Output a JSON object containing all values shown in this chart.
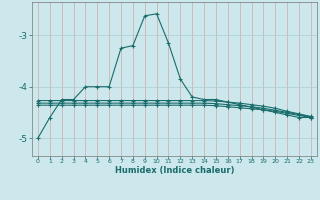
{
  "xlabel": "Humidex (Indice chaleur)",
  "background_color": "#cce8ec",
  "grid_color": "#aacccc",
  "line_color": "#1a6b6b",
  "xlim": [
    -0.5,
    23.5
  ],
  "ylim": [
    -5.35,
    -2.35
  ],
  "yticks": [
    -5,
    -4,
    -3
  ],
  "xticks": [
    0,
    1,
    2,
    3,
    4,
    5,
    6,
    7,
    8,
    9,
    10,
    11,
    12,
    13,
    14,
    15,
    16,
    17,
    18,
    19,
    20,
    21,
    22,
    23
  ],
  "main_y": [
    -5.0,
    -4.6,
    -4.25,
    -4.25,
    -4.0,
    -4.0,
    -4.0,
    -3.25,
    -3.2,
    -2.62,
    -2.58,
    -3.15,
    -3.85,
    -4.2,
    -4.25,
    -4.25,
    -4.3,
    -4.35,
    -4.4,
    -4.45,
    -4.5,
    -4.55,
    -4.6,
    -4.6
  ],
  "flat1": [
    -4.27,
    -4.27,
    -4.27,
    -4.27,
    -4.27,
    -4.27,
    -4.27,
    -4.27,
    -4.27,
    -4.27,
    -4.27,
    -4.27,
    -4.27,
    -4.27,
    -4.27,
    -4.28,
    -4.3,
    -4.32,
    -4.35,
    -4.38,
    -4.42,
    -4.48,
    -4.53,
    -4.58
  ],
  "flat2": [
    -4.32,
    -4.32,
    -4.32,
    -4.32,
    -4.32,
    -4.32,
    -4.32,
    -4.32,
    -4.32,
    -4.32,
    -4.32,
    -4.32,
    -4.32,
    -4.32,
    -4.32,
    -4.33,
    -4.35,
    -4.37,
    -4.39,
    -4.42,
    -4.46,
    -4.5,
    -4.54,
    -4.59
  ],
  "flat3": [
    -4.36,
    -4.36,
    -4.36,
    -4.36,
    -4.36,
    -4.36,
    -4.36,
    -4.36,
    -4.36,
    -4.36,
    -4.36,
    -4.36,
    -4.36,
    -4.36,
    -4.36,
    -4.37,
    -4.39,
    -4.41,
    -4.43,
    -4.45,
    -4.48,
    -4.52,
    -4.56,
    -4.6
  ]
}
